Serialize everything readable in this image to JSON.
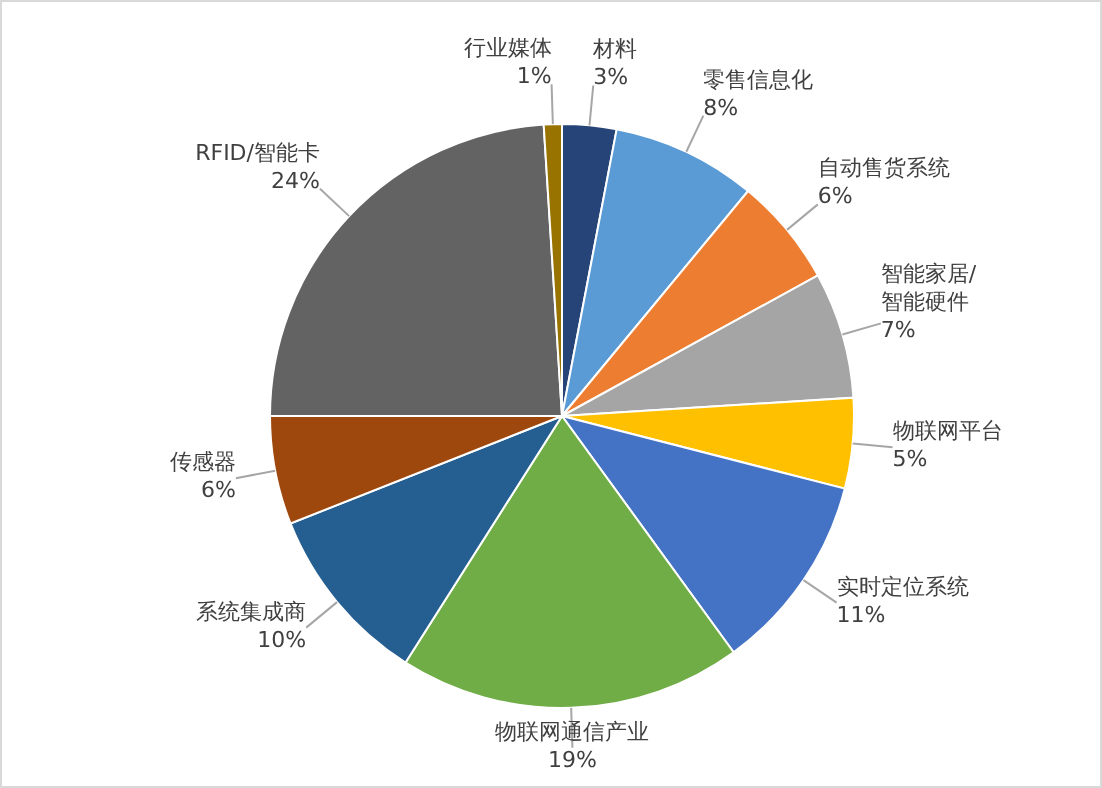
{
  "chart_data": {
    "type": "pie",
    "categories": [
      "材料",
      "零售信息化",
      "自动售货系统",
      "智能家居/智能硬件",
      "物联网平台",
      "实时定位系统",
      "物联网通信产业",
      "系统集成商",
      "传感器",
      "RFID/智能卡",
      "行业媒体"
    ],
    "values": [
      3,
      8,
      6,
      7,
      5,
      11,
      19,
      10,
      6,
      24,
      1
    ],
    "value_labels": [
      "3%",
      "8%",
      "6%",
      "7%",
      "5%",
      "11%",
      "19%",
      "10%",
      "6%",
      "24%",
      "1%"
    ],
    "colors": [
      "#264478",
      "#5b9bd5",
      "#ed7d31",
      "#a5a5a5",
      "#ffc000",
      "#4472c4",
      "#70ad47",
      "#255e91",
      "#9e480e",
      "#636363",
      "#997300"
    ],
    "legend": false
  }
}
